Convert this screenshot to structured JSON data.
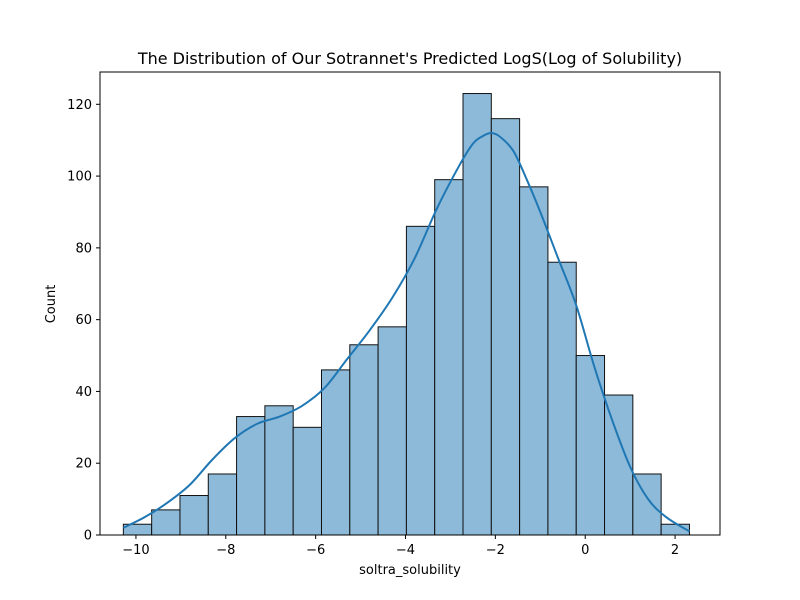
{
  "chart_data": {
    "type": "bar",
    "title": "The Distribution of Our Sotrannet's Predicted LogS(Log of Solubility)",
    "xlabel": "soltra_solubility",
    "ylabel": "Count",
    "xlim": [
      -10.8,
      3.0
    ],
    "ylim": [
      0,
      129
    ],
    "xticks": [
      -10,
      -8,
      -6,
      -4,
      -2,
      0,
      2
    ],
    "xtick_labels": [
      "−10",
      "−8",
      "−6",
      "−4",
      "−2",
      "0",
      "2"
    ],
    "yticks": [
      0,
      20,
      40,
      60,
      80,
      100,
      120
    ],
    "ytick_labels": [
      "0",
      "20",
      "40",
      "60",
      "80",
      "100",
      "120"
    ],
    "bin_edges": [
      -10.28,
      -9.65,
      -9.02,
      -8.39,
      -7.76,
      -7.13,
      -6.5,
      -5.87,
      -5.24,
      -4.61,
      -3.98,
      -3.35,
      -2.72,
      -2.09,
      -1.46,
      -0.83,
      -0.2,
      0.43,
      1.06,
      1.69,
      2.32
    ],
    "values": [
      3,
      7,
      11,
      17,
      33,
      36,
      30,
      46,
      53,
      58,
      86,
      99,
      123,
      116,
      97,
      76,
      50,
      39,
      17,
      3
    ],
    "kde": {
      "x": [
        -10.28,
        -9.8,
        -9.3,
        -8.8,
        -8.3,
        -7.8,
        -7.3,
        -6.8,
        -6.3,
        -5.8,
        -5.3,
        -4.8,
        -4.3,
        -3.8,
        -3.3,
        -2.8,
        -2.5,
        -2.3,
        -2.1,
        -1.9,
        -1.6,
        -1.3,
        -1.0,
        -0.6,
        -0.2,
        0.2,
        0.6,
        1.0,
        1.4,
        1.8,
        2.32
      ],
      "y": [
        2,
        5,
        9,
        14,
        21,
        27,
        31,
        33,
        36,
        41,
        49,
        57,
        66,
        77,
        91,
        103,
        109,
        111,
        112,
        111,
        107,
        99,
        90,
        77,
        64,
        47,
        32,
        19,
        10,
        5,
        1
      ]
    },
    "colors": {
      "bar_fill": "#8dbad9",
      "bar_edge": "#111111",
      "kde_line": "#1f77b4"
    },
    "grid": false,
    "legend": "none"
  }
}
